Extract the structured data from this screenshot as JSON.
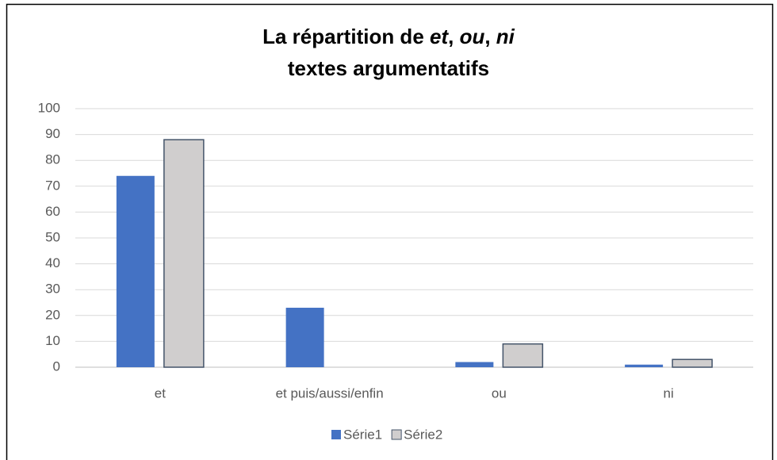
{
  "chart_data": {
    "type": "bar",
    "title": [
      [
        {
          "text": "La répartition de "
        },
        {
          "text": "et",
          "italic": true
        },
        {
          "text": ", "
        },
        {
          "text": "ou",
          "italic": true
        },
        {
          "text": ", "
        },
        {
          "text": "ni",
          "italic": true
        }
      ],
      [
        {
          "text": "textes argumentatifs"
        }
      ]
    ],
    "categories": [
      "et",
      "et puis/aussi/enfin",
      "ou",
      "ni"
    ],
    "series": [
      {
        "name": "Série1",
        "color": "#4472c4",
        "values": [
          74,
          23,
          2,
          1
        ]
      },
      {
        "name": "Série2",
        "color": "#d0cece",
        "stroke": "#44546a",
        "values": [
          88,
          null,
          9,
          3
        ]
      }
    ],
    "ylim": [
      0,
      100
    ],
    "yticks": [
      0,
      10,
      20,
      30,
      40,
      50,
      60,
      70,
      80,
      90,
      100
    ],
    "grid": true,
    "legend": "bottom"
  }
}
